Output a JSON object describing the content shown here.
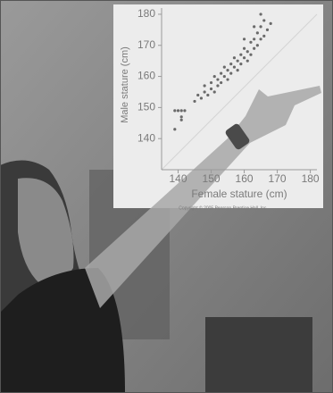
{
  "chart_data": {
    "type": "scatter",
    "y_label": "Male stature (cm)",
    "x_label": "Female stature (cm)",
    "copyright": "Copyright © 2005 Pearson Prentice Hall, Inc.",
    "x": [
      139,
      139,
      140,
      141,
      141,
      141,
      142,
      145,
      146,
      147,
      148,
      148,
      149,
      150,
      150,
      151,
      151,
      152,
      152,
      153,
      153,
      154,
      154,
      155,
      155,
      156,
      156,
      157,
      157,
      158,
      158,
      159,
      159,
      160,
      160,
      161,
      161,
      162,
      162,
      163,
      163,
      164,
      164,
      165,
      165,
      166,
      166,
      167,
      168,
      165,
      163,
      160
    ],
    "values": [
      143,
      149,
      149,
      149,
      147,
      146,
      149,
      152,
      154,
      153,
      155,
      157,
      154,
      156,
      158,
      155,
      160,
      157,
      159,
      158,
      161,
      160,
      163,
      159,
      162,
      161,
      164,
      163,
      166,
      162,
      165,
      164,
      167,
      166,
      169,
      165,
      168,
      167,
      171,
      169,
      172,
      170,
      174,
      172,
      176,
      173,
      178,
      175,
      177,
      180,
      176,
      172
    ],
    "color": "#6a6a6a",
    "xlim": [
      135,
      182
    ],
    "ylim": [
      130,
      182
    ],
    "xticks": [
      140,
      150,
      160,
      170,
      180
    ],
    "yticks": [
      140,
      150,
      160,
      170,
      180
    ]
  }
}
